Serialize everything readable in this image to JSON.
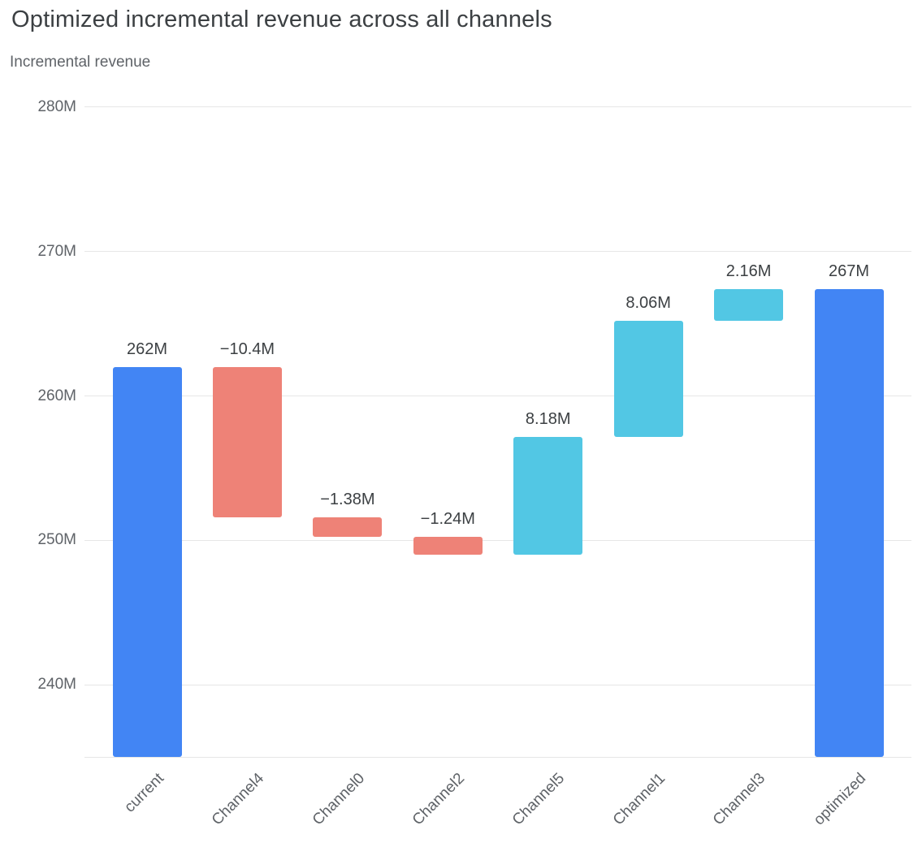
{
  "title": "Optimized incremental revenue across all channels",
  "subtitle": "Incremental revenue",
  "chart_data": {
    "type": "bar",
    "variant": "waterfall",
    "title": "Optimized incremental revenue across all channels",
    "ylabel": "Incremental revenue",
    "xlabel": "",
    "grid": true,
    "legend": "none",
    "y_axis_min": 235,
    "y_axis_max": 281,
    "y_ticks": [
      {
        "value": 240,
        "label": "240M"
      },
      {
        "value": 250,
        "label": "250M"
      },
      {
        "value": 260,
        "label": "260M"
      },
      {
        "value": 270,
        "label": "270M"
      },
      {
        "value": 280,
        "label": "280M"
      }
    ],
    "categories": [
      "current",
      "Channel4",
      "Channel0",
      "Channel2",
      "Channel5",
      "Channel1",
      "Channel3",
      "optimized"
    ],
    "bars": [
      {
        "category": "current",
        "kind": "total",
        "start": 235,
        "end": 262,
        "value": 262,
        "label": "262M"
      },
      {
        "category": "Channel4",
        "kind": "decrease",
        "start": 262,
        "end": 251.6,
        "value": -10.4,
        "label": "−10.4M"
      },
      {
        "category": "Channel0",
        "kind": "decrease",
        "start": 251.6,
        "end": 250.22,
        "value": -1.38,
        "label": "−1.38M"
      },
      {
        "category": "Channel2",
        "kind": "decrease",
        "start": 250.22,
        "end": 248.98,
        "value": -1.24,
        "label": "−1.24M"
      },
      {
        "category": "Channel5",
        "kind": "increase",
        "start": 248.98,
        "end": 257.16,
        "value": 8.18,
        "label": "8.18M"
      },
      {
        "category": "Channel1",
        "kind": "increase",
        "start": 257.16,
        "end": 265.22,
        "value": 8.06,
        "label": "8.06M"
      },
      {
        "category": "Channel3",
        "kind": "increase",
        "start": 265.22,
        "end": 267.38,
        "value": 2.16,
        "label": "2.16M"
      },
      {
        "category": "optimized",
        "kind": "total",
        "start": 235,
        "end": 267.38,
        "value": 267,
        "label": "267M"
      }
    ],
    "colors": {
      "total": "#4285f4",
      "decrease": "#ee8277",
      "increase": "#52c7e4"
    },
    "text_colors": {
      "title": "#3c4043",
      "subtitle": "#5f6368",
      "axis": "#5f6368",
      "value_label": "#3c4043"
    },
    "grid_color": "#e6e6e6"
  }
}
